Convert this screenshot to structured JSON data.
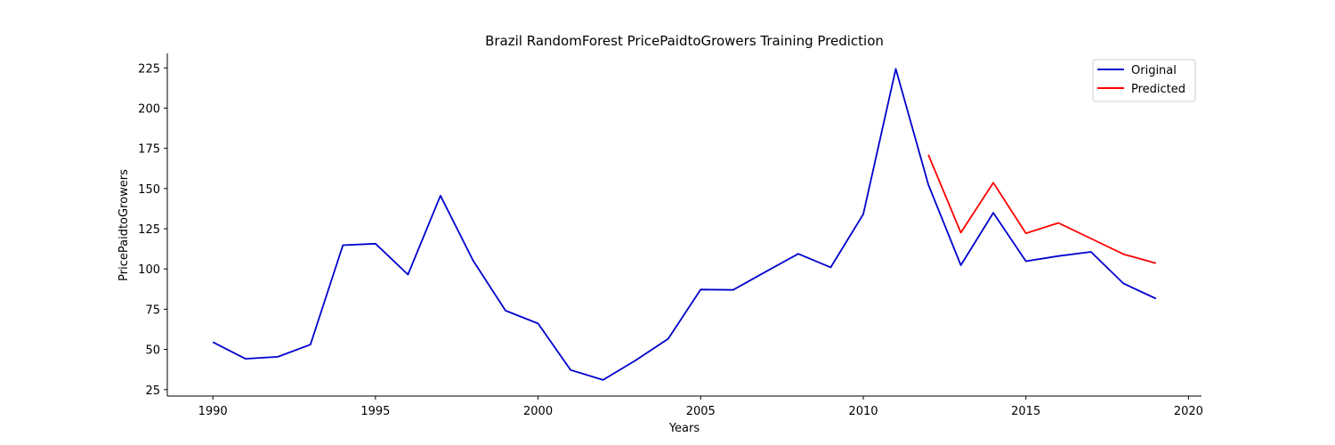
{
  "chart_data": {
    "type": "line",
    "title": "Brazil RandomForest PricePaidtoGrowers Training Prediction",
    "xlabel": "Years",
    "ylabel": "PricePaidtoGrowers",
    "xlim": [
      1988.6,
      2020.4
    ],
    "ylim": [
      21,
      234
    ],
    "xticks": [
      1990,
      1995,
      2000,
      2005,
      2010,
      2015,
      2020
    ],
    "yticks": [
      25,
      50,
      75,
      100,
      125,
      150,
      175,
      200,
      225
    ],
    "grid": false,
    "legend_position": "top-right",
    "series": [
      {
        "name": "Original",
        "color": "#0000cc",
        "x": [
          1990,
          1991,
          1992,
          1993,
          1994,
          1995,
          1996,
          1997,
          1998,
          1999,
          2000,
          2001,
          2002,
          2003,
          2004,
          2005,
          2006,
          2007,
          2008,
          2009,
          2010,
          2011,
          2012,
          2013,
          2014,
          2015,
          2016,
          2017,
          2018,
          2019
        ],
        "y": [
          54.5,
          44.2,
          45.4,
          53.0,
          114.8,
          115.7,
          96.5,
          145.6,
          105.3,
          74.1,
          66.1,
          37.2,
          31.0,
          43.2,
          56.6,
          87.2,
          87.0,
          98.3,
          109.4,
          101.0,
          134.1,
          224.4,
          152.4,
          102.3,
          134.9,
          104.8,
          108.0,
          110.6,
          91.0,
          81.6
        ]
      },
      {
        "name": "Predicted",
        "color": "#ff0000",
        "x": [
          2012,
          2013,
          2014,
          2015,
          2016,
          2017,
          2018,
          2019
        ],
        "y": [
          171.0,
          122.6,
          153.6,
          122.2,
          128.6,
          118.9,
          109.2,
          103.6
        ]
      }
    ]
  }
}
